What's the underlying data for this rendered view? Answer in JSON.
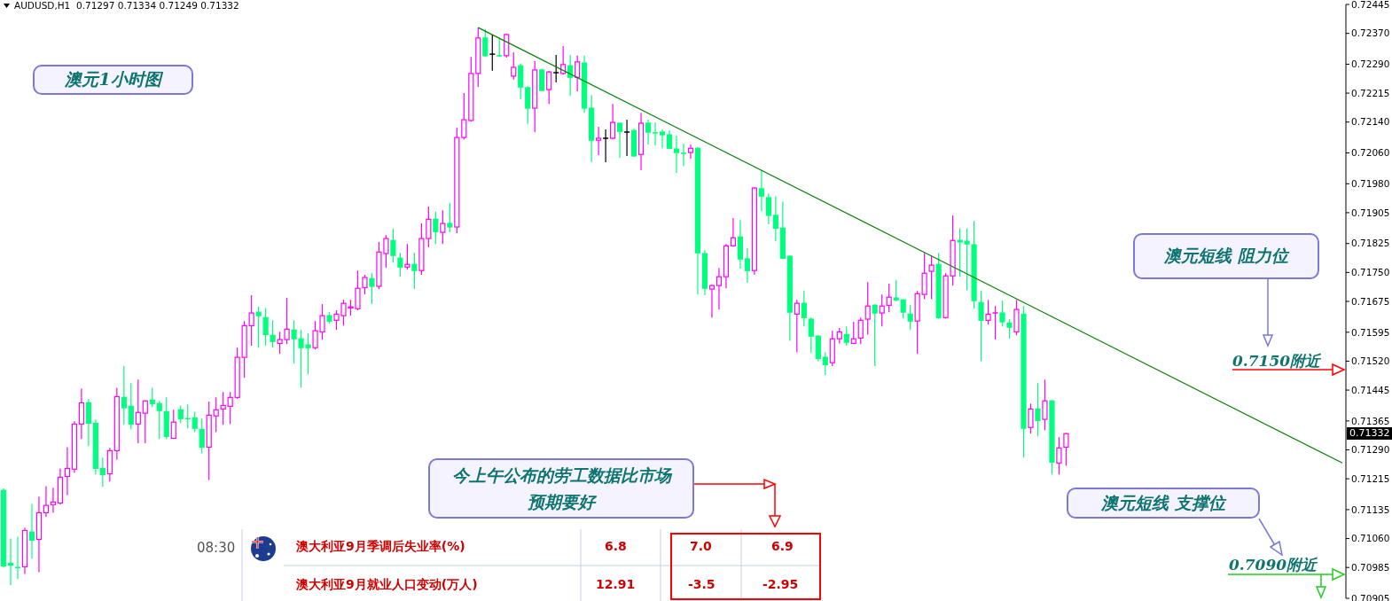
{
  "chart_data": {
    "type": "candlestick",
    "title": "AUDUSD,H1  0.71297 0.71334 0.71249 0.71332",
    "categories": [
      null,
      null,
      null,
      null,
      null,
      null,
      null,
      null,
      null,
      null,
      null,
      null,
      null,
      null,
      null,
      null,
      null,
      null,
      null,
      null,
      null,
      null,
      null,
      null,
      null,
      null,
      null,
      null,
      null,
      null,
      null,
      null,
      null,
      null,
      null,
      null,
      null,
      null,
      null,
      null,
      null,
      null,
      null,
      null,
      null,
      null,
      null,
      null,
      null,
      null,
      null,
      null,
      null,
      null,
      null,
      null,
      null,
      null,
      null,
      null,
      null,
      null,
      null,
      null,
      null,
      null,
      null,
      null,
      null,
      null,
      null,
      null,
      null,
      null,
      null,
      null,
      null,
      null,
      null,
      null,
      null,
      null,
      null,
      null,
      null,
      null,
      null,
      null,
      null,
      null,
      null,
      null,
      null,
      null,
      null,
      null,
      null,
      null,
      null,
      null,
      null,
      null,
      null,
      null,
      null,
      null,
      null,
      null,
      null,
      null,
      null,
      null,
      null,
      null,
      null,
      null,
      null,
      null,
      null,
      null,
      null,
      null,
      null,
      null,
      null,
      null,
      null,
      null,
      null,
      null,
      null,
      null,
      null,
      null,
      null,
      null,
      null,
      null,
      null,
      null,
      null,
      null,
      null,
      null,
      null,
      null,
      null,
      null,
      null,
      null,
      null,
      null,
      null,
      null,
      null,
      null,
      null,
      null,
      null,
      null,
      null,
      null,
      null,
      null,
      null,
      null,
      null,
      null,
      null,
      null,
      null,
      null,
      null,
      null,
      null,
      null,
      null,
      null,
      null,
      null,
      null,
      null,
      null,
      null,
      null,
      null,
      null,
      null,
      null,
      null
    ],
    "ohlc": [
      [
        0.71185,
        0.7119,
        0.70985,
        0.70989
      ],
      [
        0.70996,
        0.7106,
        0.70939,
        0.70991
      ],
      [
        0.70987,
        0.71065,
        0.70955,
        0.70985
      ],
      [
        0.70987,
        0.71088,
        0.70968,
        0.71081
      ],
      [
        0.71077,
        0.7115,
        0.71008,
        0.71056
      ],
      [
        0.71058,
        0.71169,
        0.70973,
        0.71127
      ],
      [
        0.71127,
        0.71196,
        0.71116,
        0.71146
      ],
      [
        0.71148,
        0.71192,
        0.71127,
        0.71155
      ],
      [
        0.71152,
        0.71242,
        0.71148,
        0.71219
      ],
      [
        0.71221,
        0.71297,
        0.71173,
        0.71242
      ],
      [
        0.7124,
        0.71364,
        0.71231,
        0.71357
      ],
      [
        0.71357,
        0.71449,
        0.71318,
        0.71412
      ],
      [
        0.71412,
        0.71422,
        0.713,
        0.71359
      ],
      [
        0.71359,
        0.71369,
        0.71226,
        0.71242
      ],
      [
        0.71242,
        0.7127,
        0.71194,
        0.71226
      ],
      [
        0.71228,
        0.71295,
        0.71208,
        0.71288
      ],
      [
        0.71288,
        0.71451,
        0.71265,
        0.71428
      ],
      [
        0.71426,
        0.71507,
        0.71355,
        0.71399
      ],
      [
        0.71403,
        0.71463,
        0.71343,
        0.71357
      ],
      [
        0.71357,
        0.71472,
        0.71307,
        0.71387
      ],
      [
        0.71385,
        0.71419,
        0.71307,
        0.71417
      ],
      [
        0.71419,
        0.71451,
        0.71401,
        0.7141
      ],
      [
        0.7141,
        0.71417,
        0.71318,
        0.71392
      ],
      [
        0.71389,
        0.71426,
        0.71318,
        0.71325
      ],
      [
        0.7132,
        0.71394,
        0.71318,
        0.71362
      ],
      [
        0.71394,
        0.71405,
        0.71359,
        0.71371
      ],
      [
        0.71373,
        0.71408,
        0.71346,
        0.71371
      ],
      [
        0.71373,
        0.71389,
        0.71336,
        0.71346
      ],
      [
        0.71343,
        0.71371,
        0.71281,
        0.71297
      ],
      [
        0.71297,
        0.71415,
        0.71212,
        0.7138
      ],
      [
        0.71378,
        0.71426,
        0.71336,
        0.71394
      ],
      [
        0.71396,
        0.7144,
        0.71355,
        0.71405
      ],
      [
        0.71403,
        0.7144,
        0.71357,
        0.71426
      ],
      [
        0.71426,
        0.71555,
        0.71422,
        0.7153
      ],
      [
        0.7153,
        0.71624,
        0.71477,
        0.71612
      ],
      [
        0.71612,
        0.71691,
        0.7156,
        0.71645
      ],
      [
        0.71647,
        0.71661,
        0.71555,
        0.71638
      ],
      [
        0.71633,
        0.71658,
        0.7156,
        0.71589
      ],
      [
        0.71587,
        0.71626,
        0.71555,
        0.71571
      ],
      [
        0.71566,
        0.71596,
        0.71539,
        0.71576
      ],
      [
        0.71576,
        0.71684,
        0.71564,
        0.71603
      ],
      [
        0.71601,
        0.71626,
        0.71514,
        0.71578
      ],
      [
        0.71578,
        0.71601,
        0.71451,
        0.71555
      ],
      [
        0.71562,
        0.71592,
        0.71486,
        0.71555
      ],
      [
        0.71555,
        0.71624,
        0.7155,
        0.71599
      ],
      [
        0.71596,
        0.71668,
        0.71576,
        0.71638
      ],
      [
        0.71638,
        0.71647,
        0.71617,
        0.71624
      ],
      [
        0.71626,
        0.71652,
        0.71601,
        0.71642
      ],
      [
        0.71638,
        0.71679,
        0.71612,
        0.7167
      ],
      [
        0.71658,
        0.71679,
        0.71638,
        0.71661
      ],
      [
        0.71656,
        0.71755,
        0.71652,
        0.71709
      ],
      [
        0.71711,
        0.71744,
        0.71693,
        0.71737
      ],
      [
        0.71734,
        0.71748,
        0.71668,
        0.71714
      ],
      [
        0.71714,
        0.71829,
        0.71707,
        0.71803
      ],
      [
        0.71799,
        0.71847,
        0.71762,
        0.71838
      ],
      [
        0.71833,
        0.71863,
        0.71776,
        0.71794
      ],
      [
        0.71787,
        0.71801,
        0.71739,
        0.71764
      ],
      [
        0.71764,
        0.71824,
        0.71757,
        0.71771
      ],
      [
        0.71771,
        0.71801,
        0.71707,
        0.71755
      ],
      [
        0.71755,
        0.71877,
        0.71744,
        0.71838
      ],
      [
        0.71838,
        0.71921,
        0.71815,
        0.71888
      ],
      [
        0.71888,
        0.71907,
        0.71824,
        0.71856
      ],
      [
        0.71854,
        0.71911,
        0.71824,
        0.71877
      ],
      [
        0.71877,
        0.7193,
        0.71854,
        0.71868
      ],
      [
        0.71868,
        0.72125,
        0.71852,
        0.721
      ],
      [
        0.721,
        0.72215,
        0.72095,
        0.72146
      ],
      [
        0.72144,
        0.72309,
        0.72141,
        0.72266
      ],
      [
        0.72266,
        0.72385,
        0.72231,
        0.72358
      ],
      [
        0.72358,
        0.72381,
        0.72309,
        0.72312
      ],
      [
        0.72316,
        0.72367,
        0.72273,
        0.72316
      ],
      [
        0.72314,
        0.72358,
        0.72309,
        0.72312
      ],
      [
        0.72312,
        0.72369,
        0.72307,
        0.72367
      ],
      [
        0.72259,
        0.72321,
        0.7225,
        0.72282
      ],
      [
        0.72286,
        0.72291,
        0.72199,
        0.72231
      ],
      [
        0.72229,
        0.72233,
        0.72135,
        0.72176
      ],
      [
        0.72176,
        0.72298,
        0.72114,
        0.72275
      ],
      [
        0.72275,
        0.72279,
        0.7222,
        0.72222
      ],
      [
        0.72224,
        0.72273,
        0.72187,
        0.7227
      ],
      [
        0.72268,
        0.72314,
        0.72243,
        0.72268
      ],
      [
        0.72266,
        0.72337,
        0.72263,
        0.72289
      ],
      [
        0.72286,
        0.72314,
        0.72208,
        0.72256
      ],
      [
        0.72256,
        0.72312,
        0.7222,
        0.72296
      ],
      [
        0.72293,
        0.72312,
        0.72164,
        0.72176
      ],
      [
        0.72176,
        0.7221,
        0.72036,
        0.72093
      ],
      [
        0.72093,
        0.72128,
        0.72054,
        0.72098
      ],
      [
        0.72098,
        0.72121,
        0.72036,
        0.72098
      ],
      [
        0.72098,
        0.72187,
        0.72095,
        0.72139
      ],
      [
        0.72137,
        0.72139,
        0.72047,
        0.72116
      ],
      [
        0.72114,
        0.72146,
        0.72052,
        0.72114
      ],
      [
        0.72118,
        0.72123,
        0.7205,
        0.72052
      ],
      [
        0.72056,
        0.72164,
        0.72015,
        0.72137
      ],
      [
        0.72137,
        0.72146,
        0.72082,
        0.72114
      ],
      [
        0.72114,
        0.72139,
        0.72079,
        0.72112
      ],
      [
        0.72114,
        0.72121,
        0.72072,
        0.72107
      ],
      [
        0.72107,
        0.72118,
        0.7207,
        0.72072
      ],
      [
        0.7207,
        0.72105,
        0.72008,
        0.72061
      ],
      [
        0.72061,
        0.72084,
        0.72026,
        0.72059
      ],
      [
        0.72061,
        0.72082,
        0.72045,
        0.72072
      ],
      [
        0.72072,
        0.72075,
        0.71693,
        0.71801
      ],
      [
        0.71799,
        0.71808,
        0.71691,
        0.71709
      ],
      [
        0.71707,
        0.71718,
        0.71633,
        0.71716
      ],
      [
        0.71716,
        0.71762,
        0.71654,
        0.71739
      ],
      [
        0.71739,
        0.71824,
        0.71709,
        0.71819
      ],
      [
        0.71819,
        0.71891,
        0.71817,
        0.7184
      ],
      [
        0.71842,
        0.71886,
        0.7176,
        0.71785
      ],
      [
        0.71785,
        0.71813,
        0.71723,
        0.71755
      ],
      [
        0.71755,
        0.71971,
        0.71744,
        0.71969
      ],
      [
        0.71967,
        0.72015,
        0.71909,
        0.71948
      ],
      [
        0.71944,
        0.71955,
        0.71875,
        0.71898
      ],
      [
        0.71898,
        0.71948,
        0.71831,
        0.71865
      ],
      [
        0.71865,
        0.71934,
        0.71785,
        0.71787
      ],
      [
        0.71792,
        0.71794,
        0.71573,
        0.71647
      ],
      [
        0.71642,
        0.71679,
        0.71543,
        0.7167
      ],
      [
        0.7167,
        0.71702,
        0.7161,
        0.71633
      ],
      [
        0.71629,
        0.71633,
        0.71541,
        0.71585
      ],
      [
        0.71585,
        0.71587,
        0.7152,
        0.71527
      ],
      [
        0.7153,
        0.71543,
        0.71484,
        0.71511
      ],
      [
        0.71516,
        0.71599,
        0.71507,
        0.71578
      ],
      [
        0.71578,
        0.71606,
        0.71566,
        0.71596
      ],
      [
        0.71589,
        0.7161,
        0.7156,
        0.71569
      ],
      [
        0.71566,
        0.71622,
        0.71564,
        0.71578
      ],
      [
        0.7158,
        0.71633,
        0.71564,
        0.71626
      ],
      [
        0.71629,
        0.71725,
        0.71589,
        0.71663
      ],
      [
        0.71665,
        0.71668,
        0.71507,
        0.71645
      ],
      [
        0.71645,
        0.71693,
        0.7161,
        0.71663
      ],
      [
        0.71665,
        0.71721,
        0.71647,
        0.71686
      ],
      [
        0.71684,
        0.7173,
        0.71675,
        0.71679
      ],
      [
        0.71679,
        0.71681,
        0.71631,
        0.71647
      ],
      [
        0.71642,
        0.71665,
        0.71601,
        0.71624
      ],
      [
        0.71624,
        0.71702,
        0.71539,
        0.71695
      ],
      [
        0.71693,
        0.71801,
        0.71681,
        0.71748
      ],
      [
        0.71753,
        0.71792,
        0.71681,
        0.71769
      ],
      [
        0.71771,
        0.71801,
        0.7163,
        0.71633
      ],
      [
        0.71633,
        0.71748,
        0.7163,
        0.71741
      ],
      [
        0.71741,
        0.71898,
        0.71716,
        0.71833
      ],
      [
        0.71833,
        0.71865,
        0.71739,
        0.71829
      ],
      [
        0.71831,
        0.71865,
        0.71704,
        0.71824
      ],
      [
        0.71822,
        0.71884,
        0.71656,
        0.71677
      ],
      [
        0.71672,
        0.71702,
        0.7152,
        0.71626
      ],
      [
        0.71626,
        0.71679,
        0.71615,
        0.71642
      ],
      [
        0.71644,
        0.71663,
        0.71576,
        0.71645
      ],
      [
        0.71645,
        0.71677,
        0.7161,
        0.71622
      ],
      [
        0.71619,
        0.71629,
        0.71578,
        0.71608
      ],
      [
        0.71596,
        0.71679,
        0.71587,
        0.71654
      ],
      [
        0.71642,
        0.71663,
        0.7127,
        0.71346
      ],
      [
        0.71348,
        0.7141,
        0.71332,
        0.71396
      ],
      [
        0.71396,
        0.71463,
        0.71325,
        0.71366
      ],
      [
        0.71369,
        0.71472,
        0.71341,
        0.71417
      ],
      [
        0.71417,
        0.71419,
        0.71226,
        0.71258
      ],
      [
        0.71256,
        0.71323,
        0.71226,
        0.71295
      ],
      [
        0.71297,
        0.71334,
        0.71249,
        0.71332
      ],
      null,
      null,
      null,
      null,
      null,
      null,
      null,
      null,
      null,
      null,
      null,
      null,
      null,
      null,
      null,
      null,
      null,
      null,
      null,
      null,
      null,
      null,
      null,
      null,
      null,
      null,
      null,
      null,
      null,
      null,
      null,
      null,
      null,
      null,
      null,
      null,
      null,
      null,
      null
    ],
    "colors": [
      "#00ff7f",
      "#00ff7f",
      "#00ff7f",
      "#ff00ff",
      "#00ff7f",
      "#ff00ff",
      "#ff00ff",
      "#ff00ff",
      "#ff00ff",
      "#ff00ff",
      "#ff00ff",
      "#ff00ff",
      "#00ff7f",
      "#00ff7f",
      "#00ff7f",
      "#ff00ff",
      "#ff00ff",
      "#00ff7f",
      "#00ff7f",
      "#ff00ff",
      "#ff00ff",
      "#00ff7f",
      "#00ff7f",
      "#00ff7f",
      "#ff00ff",
      "#00ff7f",
      "#00ff7f",
      "#00ff7f",
      "#00ff7f",
      "#ff00ff",
      "#ff00ff",
      "#ff00ff",
      "#ff00ff",
      "#ff00ff",
      "#ff00ff",
      "#ff00ff",
      "#00ff7f",
      "#00ff7f",
      "#00ff7f",
      "#ff00ff",
      "#ff00ff",
      "#00ff7f",
      "#00ff7f",
      "#00ff7f",
      "#ff00ff",
      "#ff00ff",
      "#00ff7f",
      "#ff00ff",
      "#ff00ff",
      "#ff00ff",
      "#ff00ff",
      "#ff00ff",
      "#00ff7f",
      "#ff00ff",
      "#ff00ff",
      "#00ff7f",
      "#00ff7f",
      "#ff00ff",
      "#00ff7f",
      "#ff00ff",
      "#ff00ff",
      "#00ff7f",
      "#ff00ff",
      "#00ff7f",
      "#ff00ff",
      "#ff00ff",
      "#ff00ff",
      "#ff00ff",
      "#00ff7f",
      "#000000",
      "#00ff7f",
      "#ff00ff",
      "#ff00ff",
      "#00ff7f",
      "#00ff7f",
      "#ff00ff",
      "#00ff7f",
      "#ff00ff",
      "#000000",
      "#ff00ff",
      "#00ff7f",
      "#ff00ff",
      "#00ff7f",
      "#00ff7f",
      "#ff00ff",
      "#000000",
      "#ff00ff",
      "#00ff7f",
      "#000000",
      "#00ff7f",
      "#ff00ff",
      "#00ff7f",
      "#00ff7f",
      "#00ff7f",
      "#00ff7f",
      "#00ff7f",
      "#00ff7f",
      "#ff00ff",
      "#00ff7f",
      "#00ff7f",
      "#ff00ff",
      "#ff00ff",
      "#ff00ff",
      "#ff00ff",
      "#00ff7f",
      "#00ff7f",
      "#ff00ff",
      "#00ff7f",
      "#00ff7f",
      "#00ff7f",
      "#00ff7f",
      "#00ff7f",
      "#ff00ff",
      "#00ff7f",
      "#00ff7f",
      "#00ff7f",
      "#00ff7f",
      "#ff00ff",
      "#ff00ff",
      "#00ff7f",
      "#ff00ff",
      "#ff00ff",
      "#ff00ff",
      "#00ff7f",
      "#ff00ff",
      "#ff00ff",
      "#00ff7f",
      "#00ff7f",
      "#00ff7f",
      "#ff00ff",
      "#ff00ff",
      "#ff00ff",
      "#00ff7f",
      "#ff00ff",
      "#ff00ff",
      "#00ff7f",
      "#00ff7f",
      "#00ff7f",
      "#00ff7f",
      "#ff00ff",
      "#ff00ff",
      "#00ff7f",
      "#00ff7f",
      "#ff00ff",
      "#00ff7f",
      "#ff00ff",
      "#00ff7f",
      "#ff00ff",
      "#00ff7f",
      "#ff00ff",
      "#ff00ff",
      null,
      null,
      null,
      null,
      null,
      null,
      null,
      null,
      null,
      null,
      null,
      null,
      null,
      null,
      null,
      null,
      null,
      null,
      null,
      null,
      null,
      null,
      null,
      null,
      null,
      null,
      null,
      null,
      null,
      null,
      null,
      null,
      null,
      null,
      null,
      null,
      null,
      null,
      null
    ],
    "series": [
      {
        "type": "line",
        "color": "#008000",
        "values": [
          null,
          null,
          null,
          null,
          null,
          null,
          null,
          null,
          null,
          null,
          null,
          null,
          null,
          null,
          null,
          null,
          null,
          null,
          null,
          null,
          null,
          null,
          null,
          null,
          null,
          null,
          null,
          null,
          null,
          null,
          null,
          null,
          null,
          null,
          null,
          null,
          null,
          null,
          null,
          null,
          null,
          null,
          null,
          null,
          null,
          null,
          null,
          null,
          null,
          null,
          null,
          null,
          null,
          null,
          null,
          null,
          null,
          null,
          null,
          null,
          null,
          null,
          null,
          null,
          null,
          null,
          null,
          0.72385,
          null,
          null,
          null,
          null,
          null,
          null,
          null,
          null,
          null,
          null,
          null,
          null,
          null,
          null,
          null,
          null,
          null,
          null,
          null,
          null,
          null,
          null,
          null,
          null,
          null,
          null,
          null,
          null,
          null,
          null,
          null,
          null,
          null,
          null,
          null,
          null,
          null,
          null,
          null,
          null,
          null,
          null,
          null,
          null,
          null,
          null,
          null,
          null,
          null,
          null,
          null,
          null,
          null,
          null,
          null,
          null,
          null,
          null,
          null,
          null,
          null,
          null,
          null,
          null,
          null,
          null,
          null,
          null,
          null,
          null,
          null,
          null,
          null,
          null,
          null,
          null,
          null,
          null,
          null,
          null,
          null,
          null,
          null,
          null,
          null,
          null,
          null,
          null,
          null,
          null,
          null,
          null,
          null,
          null,
          null,
          null,
          null,
          null,
          null,
          null,
          null,
          null,
          null,
          null,
          null,
          null,
          null,
          null,
          null,
          null,
          null,
          null,
          null,
          null,
          null,
          null,
          null,
          null,
          null,
          null,
          null,
          0.71256
        ]
      }
    ],
    "ylim": [
      0.70905,
      0.72445
    ],
    "yticks": [
      {
        "value": 0.72445,
        "label": "0.72445"
      },
      {
        "value": 0.7237,
        "label": "0.72370"
      },
      {
        "value": 0.7229,
        "label": "0.72290"
      },
      {
        "value": 0.72215,
        "label": "0.72215"
      },
      {
        "value": 0.7214,
        "label": "0.72140"
      },
      {
        "value": 0.7206,
        "label": "0.72060"
      },
      {
        "value": 0.7198,
        "label": "0.71980"
      },
      {
        "value": 0.71905,
        "label": "0.71905"
      },
      {
        "value": 0.71825,
        "label": "0.71825"
      },
      {
        "value": 0.7175,
        "label": "0.71750"
      },
      {
        "value": 0.71675,
        "label": "0.71675"
      },
      {
        "value": 0.71595,
        "label": "0.71595"
      },
      {
        "value": 0.7152,
        "label": "0.71520"
      },
      {
        "value": 0.71445,
        "label": "0.71445"
      },
      {
        "value": 0.71365,
        "label": "0.71365"
      },
      {
        "value": 0.7129,
        "label": "0.71290"
      },
      {
        "value": 0.71215,
        "label": "0.71215"
      },
      {
        "value": 0.71135,
        "label": "0.71135"
      },
      {
        "value": 0.7106,
        "label": "0.71060"
      },
      {
        "value": 0.70985,
        "label": "0.70985"
      },
      {
        "value": 0.70905,
        "label": "0.70905"
      }
    ],
    "tick_labels": "y",
    "annotations": [
      "澳元1小时图",
      "澳元短线 阻力位",
      "0.7150附近",
      "澳元短线 支撑位",
      "0.7090附近",
      "今上午公布的劳工数据比市场预期要好",
      "08:30",
      "澳大利亚9月季调后失业率(%)",
      "6.8",
      "7.0",
      "6.9",
      "澳大利亚9月就业人口变动(万人)",
      "12.91",
      "-3.5",
      "-2.95",
      "0.71332"
    ]
  }
}
